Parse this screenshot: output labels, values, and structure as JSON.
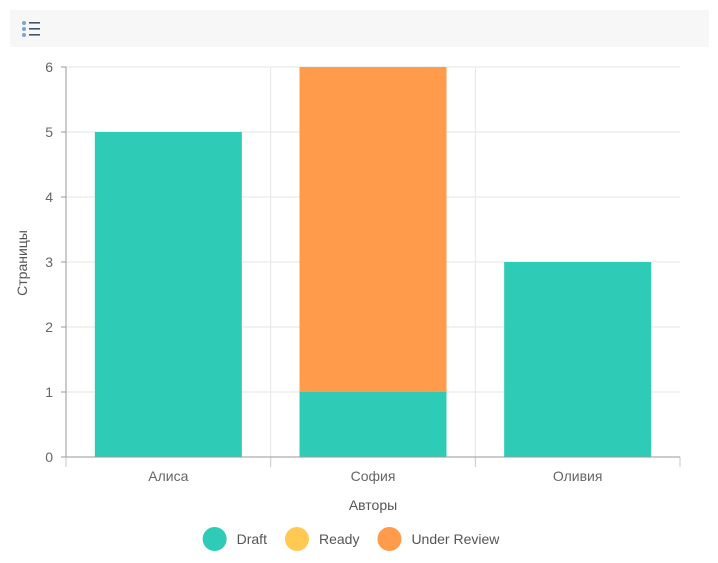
{
  "toolbar": {
    "menu_icon": "list-menu-icon"
  },
  "chart_data": {
    "type": "bar",
    "stacked": true,
    "categories": [
      "Алиса",
      "София",
      "Оливия"
    ],
    "series": [
      {
        "name": "Draft",
        "color": "#2ecbb6",
        "values": [
          5,
          1,
          3
        ]
      },
      {
        "name": "Ready",
        "color": "#ffc954",
        "values": [
          0,
          0,
          0
        ]
      },
      {
        "name": "Under Review",
        "color": "#ff9b4a",
        "values": [
          0,
          5,
          0
        ]
      }
    ],
    "xlabel": "Авторы",
    "ylabel": "Страницы",
    "ylim": [
      0,
      6
    ],
    "yticks": [
      0,
      1,
      2,
      3,
      4,
      5,
      6
    ],
    "grid": true,
    "legend_position": "bottom-center"
  }
}
